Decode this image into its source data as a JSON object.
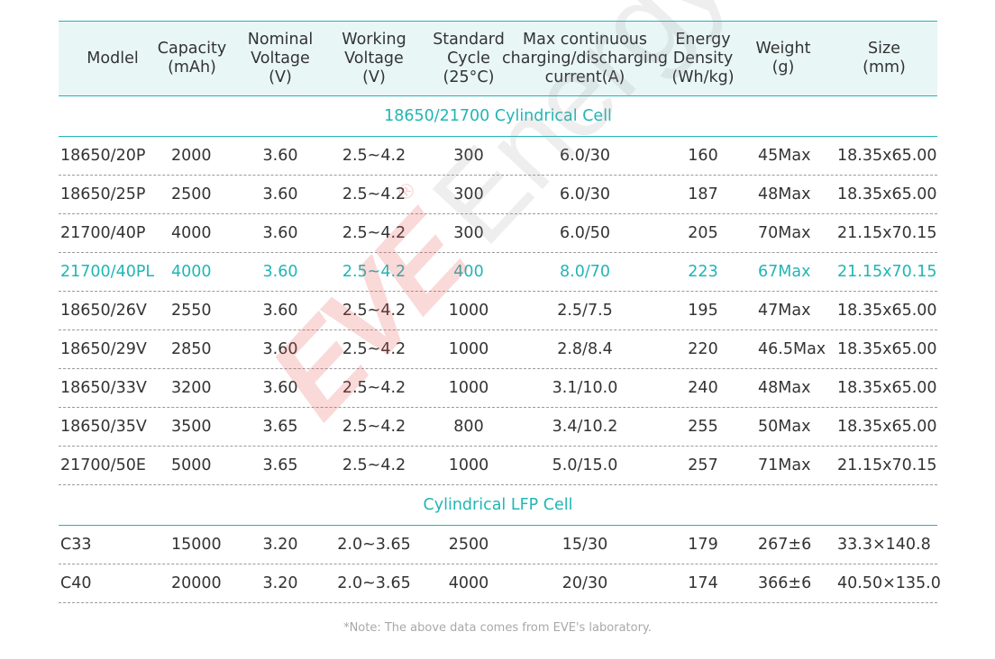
{
  "headers": [
    "Modlel",
    "Capacity\n(mAh)",
    "Nominal\nVoltage\n(V)",
    "Working\nVoltage\n(V)",
    "Standard\nCycle\n(25°C)",
    "Max continuous\ncharging/discharging\ncurrent(A)",
    "Energy\nDensity\n(Wh/kg)",
    "Weight\n(g)",
    "Size\n(mm)"
  ],
  "sections": [
    {
      "title": "18650/21700 Cylindrical Cell",
      "rows": [
        {
          "model": "18650/20P",
          "capacity": "2000",
          "nominal": "3.60",
          "working": "2.5~4.2",
          "cycle": "300",
          "current": "6.0/30",
          "density": "160",
          "weight": "45Max",
          "size": "18.35x65.00"
        },
        {
          "model": "18650/25P",
          "capacity": "2500",
          "nominal": "3.60",
          "working": "2.5~4.2",
          "cycle": "300",
          "current": "6.0/30",
          "density": "187",
          "weight": "48Max",
          "size": "18.35x65.00"
        },
        {
          "model": "21700/40P",
          "capacity": "4000",
          "nominal": "3.60",
          "working": "2.5~4.2",
          "cycle": "300",
          "current": "6.0/50",
          "density": "205",
          "weight": "70Max",
          "size": "21.15x70.15"
        },
        {
          "model": "21700/40PL",
          "capacity": "4000",
          "nominal": "3.60",
          "working": "2.5~4.2",
          "cycle": "400",
          "current": "8.0/70",
          "density": "223",
          "weight": "67Max",
          "size": "21.15x70.15",
          "highlight": true
        },
        {
          "model": "18650/26V",
          "capacity": "2550",
          "nominal": "3.60",
          "working": "2.5~4.2",
          "cycle": "1000",
          "current": "2.5/7.5",
          "density": "195",
          "weight": "47Max",
          "size": "18.35x65.00"
        },
        {
          "model": "18650/29V",
          "capacity": "2850",
          "nominal": "3.60",
          "working": "2.5~4.2",
          "cycle": "1000",
          "current": "2.8/8.4",
          "density": "220",
          "weight": "46.5Max",
          "size": "18.35x65.00"
        },
        {
          "model": "18650/33V",
          "capacity": "3200",
          "nominal": "3.60",
          "working": "2.5~4.2",
          "cycle": "1000",
          "current": "3.1/10.0",
          "density": "240",
          "weight": "48Max",
          "size": "18.35x65.00"
        },
        {
          "model": "18650/35V",
          "capacity": "3500",
          "nominal": "3.65",
          "working": "2.5~4.2",
          "cycle": "800",
          "current": "3.4/10.2",
          "density": "255",
          "weight": "50Max",
          "size": "18.35x65.00"
        },
        {
          "model": "21700/50E",
          "capacity": "5000",
          "nominal": "3.65",
          "working": "2.5~4.2",
          "cycle": "1000",
          "current": "5.0/15.0",
          "density": "257",
          "weight": "71Max",
          "size": "21.15x70.15"
        }
      ]
    },
    {
      "title": "Cylindrical LFP Cell",
      "rows": [
        {
          "model": "C33",
          "capacity": "15000",
          "nominal": "3.20",
          "working": "2.0~3.65",
          "cycle": "2500",
          "current": "15/30",
          "density": "179",
          "weight": "267±6",
          "size": "33.3×140.8"
        },
        {
          "model": "C40",
          "capacity": "20000",
          "nominal": "3.20",
          "working": "2.0~3.65",
          "cycle": "4000",
          "current": "20/30",
          "density": "174",
          "weight": "366±6",
          "size": "40.50×135.0"
        }
      ]
    }
  ],
  "note": "*Note: The above data comes from EVE's laboratory.",
  "watermark": {
    "brand": "EVE",
    "word": "Energy",
    "reg": "®"
  },
  "colors": {
    "accent": "#21b5b5",
    "header_bg": "#e9f6f6",
    "watermark_red": "#e85050"
  }
}
